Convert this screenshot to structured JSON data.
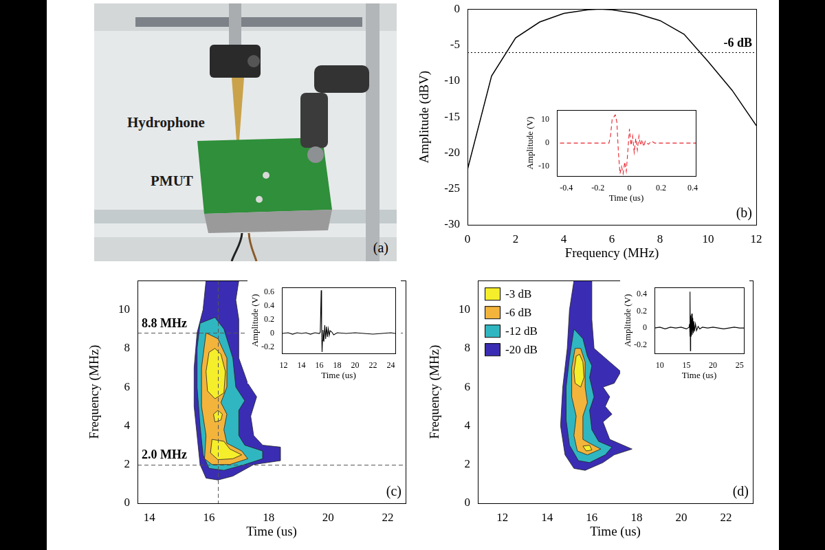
{
  "photo": {
    "panel_label": "(a)",
    "labels": [
      "Hydrophone",
      "PMUT"
    ]
  },
  "chart_data": [
    {
      "type": "line",
      "panel_label": "(b)",
      "x_label": "Frequency (MHz)",
      "y_label": "Amplitude (dBV)",
      "xlim": [
        0,
        12
      ],
      "xticks": [
        0,
        2,
        4,
        6,
        8,
        10,
        12
      ],
      "ylim": [
        -30,
        0
      ],
      "yticks": [
        -30,
        -25,
        -20,
        -15,
        -10,
        -5,
        0
      ],
      "grid": false,
      "x": [
        0,
        1,
        2,
        3,
        4,
        5,
        5.5,
        6,
        7,
        8,
        9,
        10,
        11,
        12
      ],
      "series": [
        {
          "color": "#000000",
          "line_style": "solid",
          "values": [
            -22.3,
            -9.3,
            -4,
            -1.8,
            -0.6,
            -0.1,
            0,
            -0.1,
            -0.6,
            -1.6,
            -3.5,
            -7.3,
            -11.3,
            -16.2
          ]
        }
      ],
      "reference_lines": {
        "y": [
          -6
        ],
        "line_style": "dotted"
      },
      "annotations": [
        {
          "text": "-6 dB",
          "y": -6
        }
      ]
    },
    {
      "type": "line",
      "x_label": "Time (us)",
      "y_label": "Amplitude (V)",
      "xlim": [
        -0.46,
        0.42
      ],
      "xticks": [
        -0.4,
        -0.2,
        0,
        0.2,
        0.4
      ],
      "ylim": [
        -14,
        14
      ],
      "yticks": [
        -10,
        0,
        10
      ],
      "grid": false,
      "x": [
        -0.44,
        -0.4,
        -0.3,
        -0.2,
        -0.15,
        -0.13,
        -0.12,
        -0.11,
        -0.1,
        -0.09,
        -0.08,
        -0.07,
        -0.06,
        -0.05,
        -0.04,
        -0.03,
        -0.02,
        -0.01,
        0,
        0.01,
        0.02,
        0.03,
        0.04,
        0.05,
        0.06,
        0.07,
        0.08,
        0.09,
        0.1,
        0.12,
        0.14,
        0.16,
        0.2,
        0.3,
        0.42
      ],
      "series": [
        {
          "color": "#e8202a",
          "line_style": "dashed",
          "values": [
            0,
            0,
            0,
            0,
            0,
            0,
            3,
            10,
            11,
            12,
            9,
            -4,
            -13,
            -10,
            -13,
            -8,
            -12,
            -3,
            6,
            -1,
            3,
            -4,
            2,
            -3,
            3,
            -1,
            1.5,
            -1.5,
            0.8,
            -0.5,
            0.8,
            0,
            0,
            0,
            0
          ]
        }
      ]
    },
    {
      "type": "contour",
      "panel_label": "(c)",
      "x_label": "Time (us)",
      "y_label": "Frequency (MHz)",
      "xlim": [
        13.6,
        22.6
      ],
      "xticks": [
        14,
        16,
        18,
        20,
        22
      ],
      "ylim": [
        0,
        11.5
      ],
      "yticks": [
        0,
        2,
        4,
        6,
        8,
        10
      ],
      "grid": false,
      "series": [
        {
          "color": "#f5ee2a",
          "polygons": [
            [
              [
                16.0,
                7.8
              ],
              [
                15.9,
                6.8
              ],
              [
                15.95,
                5.8
              ],
              [
                16.2,
                5.4
              ],
              [
                16.5,
                5.7
              ],
              [
                16.55,
                6.8
              ],
              [
                16.4,
                7.7
              ],
              [
                16.2,
                8.0
              ]
            ],
            [
              [
                16.15,
                4.6
              ],
              [
                16.2,
                4.2
              ],
              [
                16.4,
                4.3
              ],
              [
                16.45,
                4.6
              ],
              [
                16.3,
                4.8
              ]
            ],
            [
              [
                16.1,
                3.3
              ],
              [
                16.05,
                2.6
              ],
              [
                16.3,
                2.25
              ],
              [
                16.8,
                2.3
              ],
              [
                17.1,
                2.5
              ],
              [
                16.7,
                2.8
              ],
              [
                16.5,
                3.2
              ]
            ]
          ]
        },
        {
          "color": "#f3b43c",
          "polygons": [
            [
              [
                15.9,
                8.8
              ],
              [
                15.75,
                7
              ],
              [
                15.75,
                5
              ],
              [
                15.9,
                3.5
              ],
              [
                15.85,
                2.3
              ],
              [
                16.1,
                2.0
              ],
              [
                16.7,
                2.0
              ],
              [
                17.3,
                2.3
              ],
              [
                17.1,
                2.7
              ],
              [
                16.6,
                3.1
              ],
              [
                16.5,
                3.8
              ],
              [
                16.6,
                4.6
              ],
              [
                16.4,
                5.2
              ],
              [
                16.6,
                6
              ],
              [
                16.6,
                7.5
              ],
              [
                16.3,
                8.5
              ]
            ]
          ]
        },
        {
          "color": "#30b6c0",
          "polygons": [
            [
              [
                15.7,
                9.3
              ],
              [
                15.6,
                8
              ],
              [
                15.6,
                6
              ],
              [
                15.7,
                4
              ],
              [
                15.8,
                2.5
              ],
              [
                16.0,
                1.8
              ],
              [
                16.5,
                1.7
              ],
              [
                17.2,
                2.0
              ],
              [
                17.8,
                2.3
              ],
              [
                17.8,
                2.7
              ],
              [
                17.2,
                3.0
              ],
              [
                17.0,
                3.5
              ],
              [
                17.0,
                4.8
              ],
              [
                17.2,
                5.3
              ],
              [
                16.9,
                6
              ],
              [
                16.8,
                7.5
              ],
              [
                16.5,
                9
              ],
              [
                16.2,
                9.6
              ]
            ]
          ]
        },
        {
          "color": "#3a2db3",
          "polygons": [
            [
              [
                15.9,
                11.5
              ],
              [
                15.8,
                10
              ],
              [
                15.6,
                8.8
              ],
              [
                15.5,
                7
              ],
              [
                15.5,
                5
              ],
              [
                15.6,
                3.5
              ],
              [
                15.7,
                2
              ],
              [
                15.9,
                1.3
              ],
              [
                16.3,
                1.2
              ],
              [
                16.8,
                1.4
              ],
              [
                17.5,
                2.0
              ],
              [
                18.4,
                2.2
              ],
              [
                18.4,
                2.9
              ],
              [
                17.8,
                3.0
              ],
              [
                17.5,
                3.5
              ],
              [
                17.4,
                4.5
              ],
              [
                17.6,
                5.5
              ],
              [
                17.3,
                6.2
              ],
              [
                17.0,
                7.5
              ],
              [
                17.0,
                9.5
              ],
              [
                16.9,
                10.5
              ],
              [
                17.0,
                11.5
              ]
            ]
          ]
        }
      ],
      "reference_lines": {
        "x": [
          16.3
        ],
        "y": [
          8.8,
          2.0
        ],
        "line_style": "dashed"
      },
      "annotations": [
        {
          "text": "8.8 MHz",
          "y": 8.8
        },
        {
          "text": "2.0 MHz",
          "y": 2.0
        }
      ]
    },
    {
      "type": "line",
      "x_label": "Time (us)",
      "y_label": "Amplitude (V)",
      "xlim": [
        11.8,
        24.5
      ],
      "xticks": [
        12,
        14,
        16,
        18,
        20,
        22,
        24
      ],
      "ylim": [
        -0.29,
        0.67
      ],
      "yticks": [
        -0.2,
        0,
        0.2,
        0.4,
        0.6
      ],
      "grid": false,
      "x": [
        11.8,
        12.5,
        13,
        13.5,
        14,
        14.5,
        15,
        15.5,
        16,
        16.1,
        16.2,
        16.25,
        16.3,
        16.35,
        16.4,
        16.5,
        16.6,
        16.7,
        16.8,
        16.9,
        17.0,
        17.1,
        17.2,
        17.4,
        17.6,
        18,
        19,
        20,
        21,
        22,
        23,
        24,
        24.5
      ],
      "series": [
        {
          "color": "#000000",
          "line_style": "solid",
          "values": [
            0,
            0.01,
            -0.01,
            0.01,
            0,
            0.01,
            -0.01,
            0.01,
            0,
            0.02,
            0.63,
            0.1,
            -0.27,
            -0.1,
            0.05,
            -0.12,
            0.12,
            -0.08,
            0.1,
            -0.05,
            0.07,
            -0.03,
            0.04,
            0.02,
            -0.02,
            0.01,
            0,
            0.01,
            0,
            -0.01,
            0,
            0.01,
            0
          ]
        }
      ]
    },
    {
      "type": "contour",
      "panel_label": "(d)",
      "x_label": "Time (us)",
      "y_label": "Frequency (MHz)",
      "xlim": [
        10.9,
        23.2
      ],
      "xticks": [
        12,
        14,
        16,
        18,
        20,
        22
      ],
      "ylim": [
        0,
        11.5
      ],
      "yticks": [
        0,
        2,
        4,
        6,
        8,
        10
      ],
      "grid": false,
      "legend": "upper left",
      "series": [
        {
          "name": "-3 dB",
          "color": "#f5ee2a",
          "polygons": [
            [
              [
                15.3,
                7.6
              ],
              [
                15.2,
                6.8
              ],
              [
                15.25,
                6.2
              ],
              [
                15.5,
                6.0
              ],
              [
                15.65,
                6.5
              ],
              [
                15.6,
                7.3
              ],
              [
                15.45,
                7.7
              ]
            ],
            [
              [
                15.6,
                2.95
              ],
              [
                15.75,
                2.7
              ],
              [
                16.0,
                2.75
              ],
              [
                15.9,
                3.0
              ]
            ]
          ]
        },
        {
          "name": "-6 dB",
          "color": "#f3b43c",
          "polygons": [
            [
              [
                15.25,
                8.0
              ],
              [
                15.1,
                7.0
              ],
              [
                15.1,
                5.5
              ],
              [
                15.3,
                4.5
              ],
              [
                15.2,
                3.5
              ],
              [
                15.35,
                2.7
              ],
              [
                15.8,
                2.5
              ],
              [
                16.4,
                2.8
              ],
              [
                15.9,
                3.1
              ],
              [
                15.6,
                3.3
              ],
              [
                15.6,
                4.5
              ],
              [
                15.8,
                5.2
              ],
              [
                15.7,
                6.0
              ],
              [
                15.7,
                7.3
              ],
              [
                15.5,
                8.0
              ]
            ]
          ]
        },
        {
          "name": "-12 dB",
          "color": "#30b6c0",
          "polygons": [
            [
              [
                15.2,
                9.0
              ],
              [
                15.0,
                7.5
              ],
              [
                14.85,
                6
              ],
              [
                14.85,
                4.3
              ],
              [
                15.0,
                3
              ],
              [
                15.4,
                2.2
              ],
              [
                15.9,
                2.1
              ],
              [
                16.6,
                2.5
              ],
              [
                16.9,
                2.9
              ],
              [
                16.3,
                3.2
              ],
              [
                16.0,
                3.8
              ],
              [
                15.9,
                4.8
              ],
              [
                16.1,
                5.5
              ],
              [
                15.9,
                6.5
              ],
              [
                16.0,
                7.1
              ],
              [
                15.8,
                7.6
              ],
              [
                15.6,
                8.5
              ]
            ]
          ]
        },
        {
          "name": "-20 dB",
          "color": "#3a2db3",
          "polygons": [
            [
              [
                15.2,
                11.5
              ],
              [
                15.0,
                10
              ],
              [
                14.9,
                8
              ],
              [
                14.7,
                6
              ],
              [
                14.6,
                4
              ],
              [
                14.8,
                2.5
              ],
              [
                15.2,
                1.8
              ],
              [
                15.7,
                1.7
              ],
              [
                16.5,
                2.1
              ],
              [
                17.0,
                2.5
              ],
              [
                17.8,
                2.8
              ],
              [
                16.8,
                3.3
              ],
              [
                16.5,
                4.2
              ],
              [
                16.9,
                4.6
              ],
              [
                16.6,
                5.0
              ],
              [
                16.8,
                5.5
              ],
              [
                16.5,
                6.0
              ],
              [
                17.0,
                6.2
              ],
              [
                17.3,
                6.8
              ],
              [
                16.7,
                7.4
              ],
              [
                16.1,
                8.0
              ],
              [
                16.0,
                9.5
              ],
              [
                16.0,
                11.5
              ]
            ]
          ]
        }
      ]
    },
    {
      "type": "line",
      "x_label": "Time (us)",
      "y_label": "Amplitude (V)",
      "xlim": [
        9,
        25.8
      ],
      "xticks": [
        10,
        15,
        20,
        25
      ],
      "ylim": [
        -0.3,
        0.48
      ],
      "yticks": [
        -0.2,
        0,
        0.2,
        0.4
      ],
      "grid": false,
      "x": [
        9,
        10,
        11,
        12,
        13,
        14,
        15,
        15.5,
        15.6,
        15.65,
        15.7,
        15.75,
        15.8,
        15.9,
        16.0,
        16.1,
        16.2,
        16.3,
        16.4,
        16.5,
        16.7,
        16.9,
        17.2,
        17.5,
        18,
        19,
        20,
        21,
        22,
        23,
        24,
        25,
        25.8
      ],
      "series": [
        {
          "color": "#000000",
          "line_style": "solid",
          "values": [
            0,
            0.01,
            -0.01,
            0.01,
            0,
            0.01,
            -0.01,
            0.01,
            0.05,
            -0.1,
            0.43,
            -0.27,
            0.15,
            -0.1,
            0.17,
            -0.08,
            0.12,
            -0.06,
            0.08,
            -0.04,
            0.05,
            -0.03,
            0.02,
            -0.01,
            0.01,
            0,
            0.01,
            0,
            -0.01,
            0,
            0.01,
            0,
            0
          ]
        }
      ]
    }
  ]
}
